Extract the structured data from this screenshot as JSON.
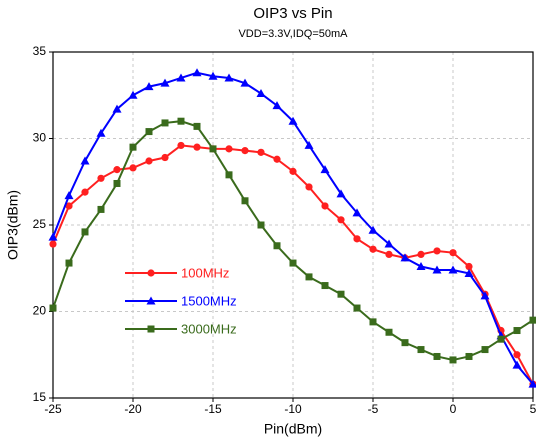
{
  "chart_data": {
    "type": "line",
    "title": "OIP3 vs Pin",
    "subtitle": "VDD=3.3V,IDQ=50mA",
    "x_label": "Pin(dBm)",
    "y_label": "OIP3(dBm)",
    "x": [
      -25,
      -24,
      -23,
      -22,
      -21,
      -20,
      -19,
      -18,
      -17,
      -16,
      -15,
      -14,
      -13,
      -12,
      -11,
      -10,
      -9,
      -8,
      -7,
      -6,
      -5,
      -4,
      -3,
      -2,
      -1,
      0,
      1,
      2,
      3,
      4,
      5
    ],
    "series": [
      {
        "name": "100MHz",
        "color": "#ff2020",
        "marker": "circle",
        "values": [
          23.9,
          26.1,
          26.9,
          27.7,
          28.2,
          28.3,
          28.7,
          28.9,
          29.6,
          29.5,
          29.4,
          29.4,
          29.3,
          29.2,
          28.8,
          28.1,
          27.2,
          26.1,
          25.3,
          24.2,
          23.6,
          23.3,
          23.1,
          23.3,
          23.5,
          23.4,
          22.6,
          21.0,
          18.9,
          17.5,
          15.8
        ]
      },
      {
        "name": "1500MHz",
        "color": "#0000ff",
        "marker": "triangle",
        "values": [
          24.3,
          26.7,
          28.7,
          30.3,
          31.7,
          32.5,
          33.0,
          33.2,
          33.5,
          33.8,
          33.6,
          33.5,
          33.2,
          32.6,
          31.9,
          31.0,
          29.6,
          28.2,
          26.8,
          25.7,
          24.7,
          23.9,
          23.1,
          22.6,
          22.4,
          22.4,
          22.2,
          20.9,
          18.6,
          16.9,
          15.8
        ]
      },
      {
        "name": "3000MHz",
        "color": "#3a6b1c",
        "marker": "square",
        "values": [
          20.2,
          22.8,
          24.6,
          25.9,
          27.4,
          29.5,
          30.4,
          30.9,
          31.0,
          30.7,
          29.4,
          27.9,
          26.4,
          25.0,
          23.8,
          22.8,
          22.0,
          21.5,
          21.0,
          20.2,
          19.4,
          18.8,
          18.2,
          17.8,
          17.4,
          17.2,
          17.4,
          17.8,
          18.4,
          18.9,
          19.5
        ]
      }
    ],
    "xlim": [
      -25,
      5
    ],
    "xticks": [
      -25,
      -20,
      -15,
      -10,
      -5,
      0,
      5
    ],
    "ylim": [
      15,
      35
    ],
    "yticks": [
      15,
      20,
      25,
      30,
      35
    ],
    "grid": true,
    "legend": "lower-left"
  }
}
